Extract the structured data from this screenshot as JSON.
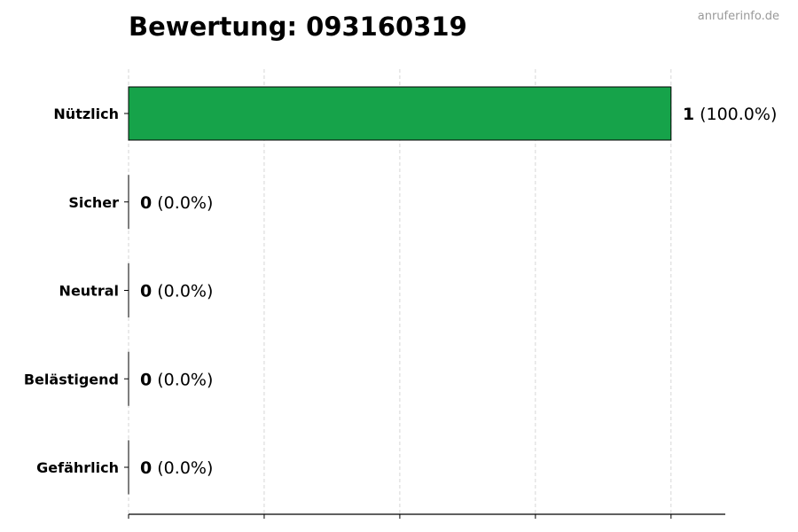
{
  "watermark": "anruferinfo.de",
  "chart_data": {
    "type": "bar",
    "orientation": "horizontal",
    "title": "Bewertung: 093160319",
    "categories": [
      "Nützlich",
      "Sicher",
      "Neutral",
      "Belästigend",
      "Gefährlich"
    ],
    "values": [
      1,
      0,
      0,
      0,
      0
    ],
    "value_labels": [
      "1",
      "0",
      "0",
      "0",
      "0"
    ],
    "percent_labels": [
      "(100.0%)",
      "(0.0%)",
      "(0.0%)",
      "(0.0%)",
      "(0.0%)"
    ],
    "colors": [
      "#16a34a",
      "#16a34a",
      "#16a34a",
      "#16a34a",
      "#16a34a"
    ],
    "xlim": [
      0,
      1.1
    ],
    "xticks": [
      0,
      0.25,
      0.5,
      0.75,
      1
    ],
    "xtick_labels_shown": false,
    "grid": "vertical dashed",
    "xlabel": "",
    "ylabel": ""
  }
}
